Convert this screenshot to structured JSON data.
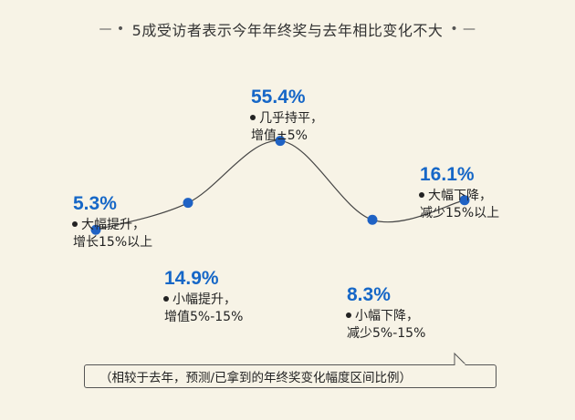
{
  "title": "5成受访者表示今年年终奖与去年相比变化不大",
  "title_deco_left": "— •",
  "title_deco_right": "• —",
  "note": "（相较于去年，预测/已拿到的年终奖变化幅度区间比例）",
  "colors": {
    "accent": "#1667c7",
    "background": "#f7f3e6",
    "dot": "#1f62c4",
    "curve": "#444444"
  },
  "chart_data": {
    "type": "line",
    "title": "5成受访者表示今年年终奖与去年相比变化不大",
    "curve": "smooth",
    "categories": [
      "大幅提升，增长15%以上",
      "小幅提升，增值5%-15%",
      "几乎持平，增值±5%",
      "小幅下降，减少5%-15%",
      "大幅下降，减少15%以上"
    ],
    "values": [
      5.3,
      14.9,
      55.4,
      8.3,
      16.1
    ],
    "points": [
      {
        "percent": "5.3%",
        "line1": "大幅提升，",
        "line2": "增长15%以上"
      },
      {
        "percent": "14.9%",
        "line1": "小幅提升，",
        "line2": "增值5%-15%"
      },
      {
        "percent": "55.4%",
        "line1": "几乎持平，",
        "line2": "增值±5%"
      },
      {
        "percent": "8.3%",
        "line1": "小幅下降，",
        "line2": "减少5%-15%"
      },
      {
        "percent": "16.1%",
        "line1": "大幅下降，",
        "line2": "减少15%以上"
      }
    ]
  }
}
